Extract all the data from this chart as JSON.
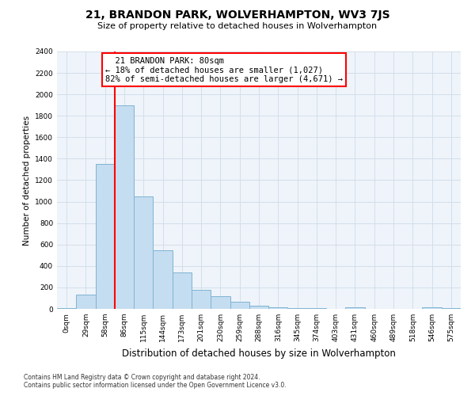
{
  "title": "21, BRANDON PARK, WOLVERHAMPTON, WV3 7JS",
  "subtitle": "Size of property relative to detached houses in Wolverhampton",
  "xlabel": "Distribution of detached houses by size in Wolverhampton",
  "ylabel": "Number of detached properties",
  "footnote1": "Contains HM Land Registry data © Crown copyright and database right 2024.",
  "footnote2": "Contains public sector information licensed under the Open Government Licence v3.0.",
  "bar_labels": [
    "0sqm",
    "29sqm",
    "58sqm",
    "86sqm",
    "115sqm",
    "144sqm",
    "173sqm",
    "201sqm",
    "230sqm",
    "259sqm",
    "288sqm",
    "316sqm",
    "345sqm",
    "374sqm",
    "403sqm",
    "431sqm",
    "460sqm",
    "489sqm",
    "518sqm",
    "546sqm",
    "575sqm"
  ],
  "bar_values": [
    5,
    135,
    1350,
    1900,
    1050,
    550,
    340,
    175,
    115,
    65,
    30,
    18,
    10,
    5,
    0,
    18,
    0,
    0,
    0,
    18,
    5
  ],
  "bar_color": "#c5ddf0",
  "bar_edge_color": "#7fb3d3",
  "ylim": [
    0,
    2400
  ],
  "yticks": [
    0,
    200,
    400,
    600,
    800,
    1000,
    1200,
    1400,
    1600,
    1800,
    2000,
    2200,
    2400
  ],
  "property_line_x": 3,
  "annotation_title": "21 BRANDON PARK: 80sqm",
  "annotation_line1": "← 18% of detached houses are smaller (1,027)",
  "annotation_line2": "82% of semi-detached houses are larger (4,671) →",
  "grid_color": "#d0dce8",
  "background_color": "#ffffff",
  "title_fontsize": 10,
  "subtitle_fontsize": 8
}
